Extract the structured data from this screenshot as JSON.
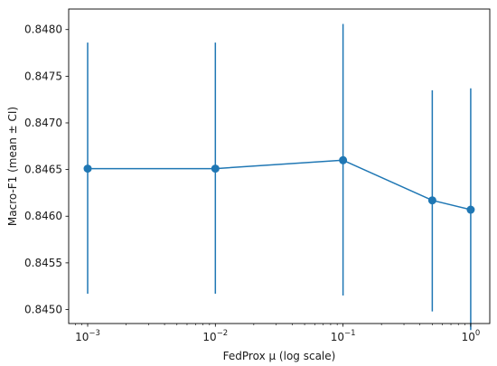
{
  "chart_data": {
    "type": "line",
    "title": "",
    "xlabel": "FedProx μ (log scale)",
    "ylabel": "Macro-F1 (mean ± CI)",
    "x_scale": "log",
    "xlim": [
      0.00071,
      1.41
    ],
    "ylim": [
      0.84485,
      0.84822
    ],
    "grid": false,
    "legend": "none",
    "colors": {
      "series": "#1f77b4",
      "axes": "#000000",
      "background": "#ffffff"
    },
    "x_ticks": [
      {
        "value": 0.001,
        "base": "10",
        "exp": "−3"
      },
      {
        "value": 0.01,
        "base": "10",
        "exp": "−2"
      },
      {
        "value": 0.1,
        "base": "10",
        "exp": "−1"
      },
      {
        "value": 1,
        "base": "10",
        "exp": "0"
      }
    ],
    "y_ticks": [
      {
        "value": 0.845,
        "label": "0.8450"
      },
      {
        "value": 0.8455,
        "label": "0.8455"
      },
      {
        "value": 0.846,
        "label": "0.8460"
      },
      {
        "value": 0.8465,
        "label": "0.8465"
      },
      {
        "value": 0.847,
        "label": "0.8470"
      },
      {
        "value": 0.8475,
        "label": "0.8475"
      },
      {
        "value": 0.848,
        "label": "0.8480"
      }
    ],
    "series": [
      {
        "points": [
          {
            "x": 0.001,
            "y": 0.84651,
            "lo": 0.84517,
            "hi": 0.84786
          },
          {
            "x": 0.01,
            "y": 0.84651,
            "lo": 0.84517,
            "hi": 0.84786
          },
          {
            "x": 0.1,
            "y": 0.8466,
            "lo": 0.84515,
            "hi": 0.84806
          },
          {
            "x": 0.5,
            "y": 0.84617,
            "lo": 0.84498,
            "hi": 0.84735
          },
          {
            "x": 1.0,
            "y": 0.84607,
            "lo": 0.84478,
            "hi": 0.84737
          }
        ]
      }
    ]
  }
}
